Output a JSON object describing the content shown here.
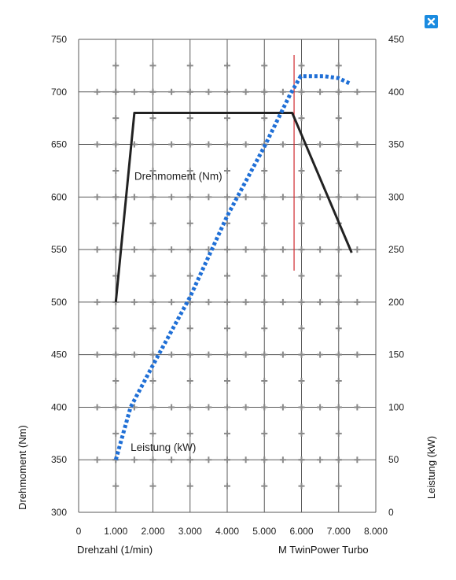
{
  "close_button": {
    "icon": "close-icon",
    "color": "#1a8be0"
  },
  "chart_data": {
    "type": "line",
    "xlabel": "Drehzahl (1/min)",
    "ylabel_left": "Drehmoment (Nm)",
    "ylabel_right": "Leistung (kW)",
    "brand_label": "M TwinPower Turbo",
    "xlim": [
      0,
      8000
    ],
    "ylim_left": [
      300,
      750
    ],
    "ylim_right": [
      0,
      450
    ],
    "x_ticks": [
      0,
      1000,
      2000,
      3000,
      4000,
      5000,
      6000,
      7000,
      8000
    ],
    "x_tick_labels": [
      "0",
      "1.000",
      "2.000",
      "3.000",
      "4.000",
      "5.000",
      "6.000",
      "7.000",
      "8.000"
    ],
    "y_left_ticks": [
      300,
      350,
      400,
      450,
      500,
      550,
      600,
      650,
      700,
      750
    ],
    "y_left_tick_labels": [
      "300",
      "350",
      "400",
      "450",
      "500",
      "550",
      "600",
      "650",
      "700",
      "750"
    ],
    "y_right_ticks": [
      0,
      50,
      100,
      150,
      200,
      250,
      300,
      350,
      400,
      450
    ],
    "y_right_tick_labels": [
      "0",
      "50",
      "100",
      "150",
      "200",
      "250",
      "300",
      "350",
      "400",
      "450"
    ],
    "grid": true,
    "series": [
      {
        "name": "Drehmoment (Nm)",
        "axis": "left",
        "style": "solid",
        "color": "#222222",
        "points": [
          [
            1000,
            500
          ],
          [
            1500,
            680
          ],
          [
            5750,
            680
          ],
          [
            7350,
            547
          ]
        ]
      },
      {
        "name": "Leistung (kW)",
        "axis": "right",
        "style": "dotted",
        "color": "#1f6fd6",
        "points": [
          [
            1000,
            50
          ],
          [
            1400,
            100
          ],
          [
            2000,
            140
          ],
          [
            3000,
            205
          ],
          [
            4000,
            282
          ],
          [
            5000,
            348
          ],
          [
            5700,
            398
          ],
          [
            5980,
            415
          ],
          [
            6600,
            415
          ],
          [
            7000,
            413
          ],
          [
            7300,
            408
          ]
        ]
      }
    ],
    "reference_line": {
      "x": 5800,
      "y_from": 530,
      "y_to": 735,
      "color": "#d0282e"
    }
  }
}
